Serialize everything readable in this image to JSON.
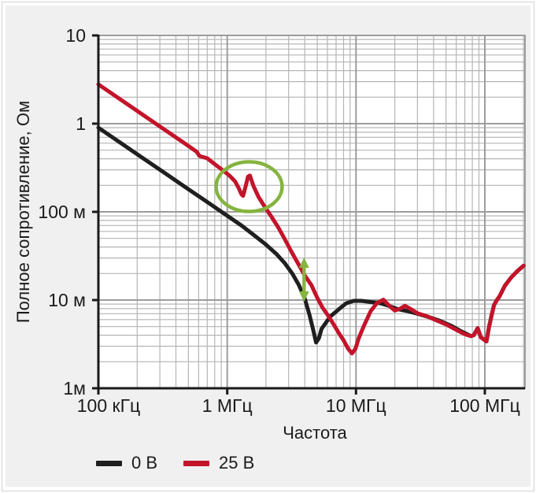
{
  "panel": {
    "background": "#f0f0f0",
    "frame_border": "#d2d2d2",
    "plot_background": "#ffffff"
  },
  "colors": {
    "axis": "#1a1a1a",
    "grid_major": "#9c9c9c",
    "grid_minor": "#b5b5b5",
    "annotation_green": "#85b440"
  },
  "chart_data": {
    "type": "line",
    "title": "",
    "xlabel": "Частота",
    "ylabel": "Полное сопротивление, Ом",
    "x_scale": "log",
    "y_scale": "log",
    "xlim": [
      100000,
      205000000
    ],
    "ylim": [
      0.001,
      10
    ],
    "grid": "log major + minor, both axes",
    "legend_position": "bottom-left",
    "x_ticks": [
      {
        "value": 100000,
        "label": "100 кГц"
      },
      {
        "value": 1000000,
        "label": "1 МГц"
      },
      {
        "value": 10000000,
        "label": "10 МГц"
      },
      {
        "value": 100000000,
        "label": "100 МГц"
      }
    ],
    "y_ticks": [
      {
        "value": 10,
        "label": "10"
      },
      {
        "value": 1,
        "label": "1"
      },
      {
        "value": 0.1,
        "label": "100 м"
      },
      {
        "value": 0.01,
        "label": "10 м"
      },
      {
        "value": 0.001,
        "label": "1м"
      }
    ],
    "series": [
      {
        "name": "0 В",
        "color": "#1f1f1f",
        "points": [
          [
            100000,
            0.9
          ],
          [
            150000,
            0.6
          ],
          [
            220000,
            0.41
          ],
          [
            330000,
            0.273
          ],
          [
            470000,
            0.192
          ],
          [
            680000,
            0.133
          ],
          [
            1000000,
            0.0905
          ],
          [
            1300000,
            0.0695
          ],
          [
            1600000,
            0.055
          ],
          [
            2000000,
            0.0425
          ],
          [
            2400000,
            0.0335
          ],
          [
            2800000,
            0.0262
          ],
          [
            3200000,
            0.02
          ],
          [
            3600000,
            0.0148
          ],
          [
            4000000,
            0.0104
          ],
          [
            4350000,
            0.0068
          ],
          [
            4650000,
            0.0046
          ],
          [
            4900000,
            0.0033
          ],
          [
            5150000,
            0.0037
          ],
          [
            5400000,
            0.0047
          ],
          [
            6300000,
            0.0065
          ],
          [
            7300000,
            0.0078
          ],
          [
            8400000,
            0.0092
          ],
          [
            9600000,
            0.0098
          ],
          [
            11000000,
            0.0098
          ],
          [
            13000000,
            0.0095
          ],
          [
            15500000,
            0.0092
          ],
          [
            18000000,
            0.0086
          ],
          [
            21000000,
            0.0079
          ],
          [
            25000000,
            0.0075
          ],
          [
            30000000,
            0.007
          ],
          [
            37000000,
            0.0064
          ],
          [
            45000000,
            0.0058
          ],
          [
            55000000,
            0.0051
          ],
          [
            66000000,
            0.0044
          ],
          [
            78000000,
            0.0039
          ],
          [
            82000000,
            0.004
          ],
          [
            88000000,
            0.0048
          ],
          [
            93000000,
            0.0038
          ],
          [
            103000000,
            0.0034
          ],
          [
            108000000,
            0.005
          ],
          [
            113000000,
            0.0068
          ],
          [
            118000000,
            0.0088
          ],
          [
            124000000,
            0.01
          ],
          [
            130000000,
            0.011
          ],
          [
            143000000,
            0.0145
          ],
          [
            160000000,
            0.018
          ],
          [
            180000000,
            0.0215
          ],
          [
            200000000,
            0.0245
          ]
        ]
      },
      {
        "name": "25 В",
        "color": "#c3142a",
        "points": [
          [
            100000,
            2.79
          ],
          [
            150000,
            1.86
          ],
          [
            220000,
            1.27
          ],
          [
            330000,
            0.845
          ],
          [
            470000,
            0.594
          ],
          [
            580000,
            0.48
          ],
          [
            610000,
            0.43
          ],
          [
            700000,
            0.405
          ],
          [
            760000,
            0.368
          ],
          [
            850000,
            0.325
          ],
          [
            950000,
            0.287
          ],
          [
            1050000,
            0.255
          ],
          [
            1150000,
            0.222
          ],
          [
            1230000,
            0.185
          ],
          [
            1290000,
            0.158
          ],
          [
            1330000,
            0.152
          ],
          [
            1390000,
            0.195
          ],
          [
            1450000,
            0.25
          ],
          [
            1500000,
            0.258
          ],
          [
            1600000,
            0.196
          ],
          [
            1750000,
            0.148
          ],
          [
            1950000,
            0.115
          ],
          [
            2200000,
            0.0885
          ],
          [
            2500000,
            0.066
          ],
          [
            2800000,
            0.049
          ],
          [
            3200000,
            0.034
          ],
          [
            3600000,
            0.025
          ],
          [
            4000000,
            0.019
          ],
          [
            4500000,
            0.0148
          ],
          [
            5000000,
            0.0106
          ],
          [
            5500000,
            0.0082
          ],
          [
            6100000,
            0.0066
          ],
          [
            6700000,
            0.0053
          ],
          [
            7300000,
            0.0043
          ],
          [
            8000000,
            0.0035
          ],
          [
            8700000,
            0.0028
          ],
          [
            9300000,
            0.00248
          ],
          [
            9900000,
            0.0028
          ],
          [
            10500000,
            0.0037
          ],
          [
            11500000,
            0.0051
          ],
          [
            13000000,
            0.0075
          ],
          [
            14500000,
            0.0092
          ],
          [
            16300000,
            0.0101
          ],
          [
            18000000,
            0.0087
          ],
          [
            20000000,
            0.0076
          ],
          [
            22000000,
            0.008
          ],
          [
            24000000,
            0.0086
          ],
          [
            27000000,
            0.0078
          ],
          [
            30000000,
            0.0071
          ],
          [
            35000000,
            0.0066
          ],
          [
            42000000,
            0.0059
          ],
          [
            50000000,
            0.0053
          ],
          [
            60000000,
            0.0046
          ],
          [
            70000000,
            0.0041
          ],
          [
            78000000,
            0.0039
          ],
          [
            82000000,
            0.004
          ],
          [
            88000000,
            0.0048
          ],
          [
            93000000,
            0.0038
          ],
          [
            103000000,
            0.0034
          ],
          [
            108000000,
            0.005
          ],
          [
            113000000,
            0.0068
          ],
          [
            118000000,
            0.0088
          ],
          [
            124000000,
            0.01
          ],
          [
            130000000,
            0.011
          ],
          [
            143000000,
            0.0145
          ],
          [
            160000000,
            0.018
          ],
          [
            180000000,
            0.0215
          ],
          [
            200000000,
            0.0245
          ]
        ]
      }
    ],
    "annotations": {
      "ellipse": {
        "cx_hz": 1480000,
        "cy_ohm": 0.193,
        "rx_decades": 0.256,
        "ry_decades": 0.281,
        "color": "#85b440"
      },
      "double_arrow": {
        "x_hz": 3950000,
        "y_top_ohm": 0.0303,
        "y_bottom_ohm": 0.0096,
        "color": "#85b440"
      }
    }
  }
}
